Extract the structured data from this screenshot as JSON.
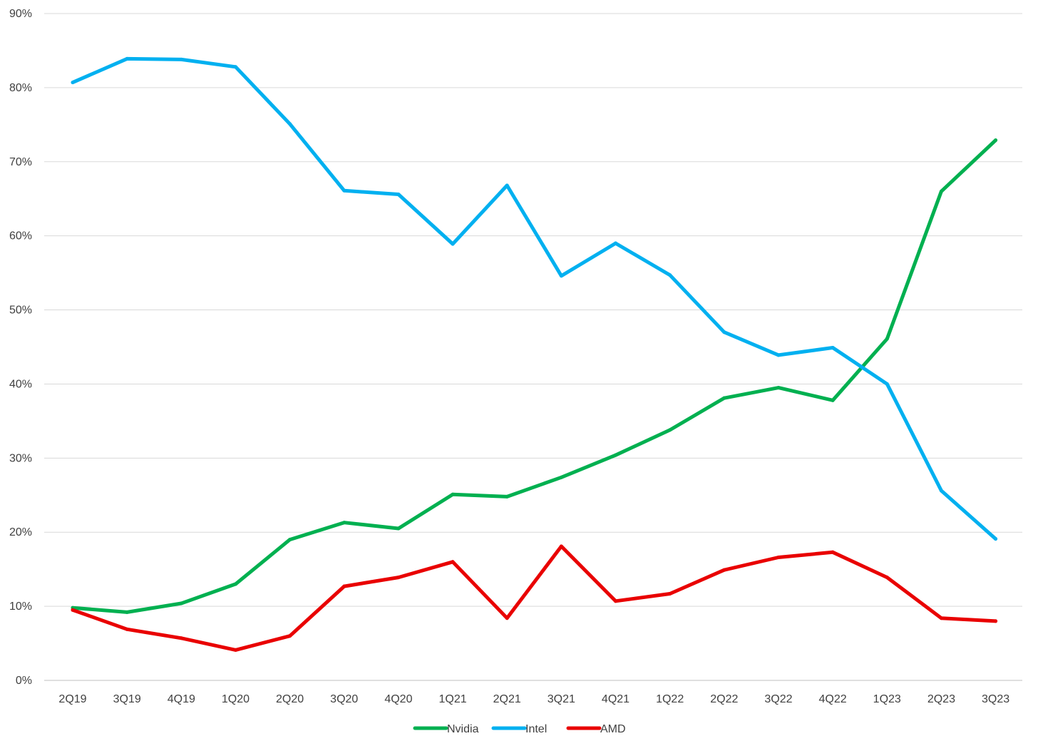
{
  "chart_data": {
    "type": "line",
    "categories": [
      "2Q19",
      "3Q19",
      "4Q19",
      "1Q20",
      "2Q20",
      "3Q20",
      "4Q20",
      "1Q21",
      "2Q21",
      "3Q21",
      "4Q21",
      "1Q22",
      "2Q22",
      "3Q22",
      "4Q22",
      "1Q23",
      "2Q23",
      "3Q23"
    ],
    "series": [
      {
        "name": "Nvidia",
        "color": "#00B050",
        "values": [
          9.8,
          9.2,
          10.4,
          13.0,
          19.0,
          21.3,
          20.5,
          25.1,
          24.8,
          27.4,
          30.4,
          33.8,
          38.1,
          39.5,
          37.8,
          46.1,
          66.0,
          72.9
        ]
      },
      {
        "name": "Intel",
        "color": "#00B0F0",
        "values": [
          80.7,
          83.9,
          83.8,
          82.8,
          75.1,
          66.1,
          65.6,
          58.9,
          66.8,
          54.6,
          59.0,
          54.7,
          47.0,
          43.9,
          44.9,
          40.0,
          25.6,
          19.1
        ]
      },
      {
        "name": "AMD",
        "color": "#E90000",
        "values": [
          9.5,
          6.9,
          5.7,
          4.1,
          6.0,
          12.7,
          13.9,
          16.0,
          8.4,
          18.1,
          10.7,
          11.7,
          14.9,
          16.6,
          17.3,
          13.9,
          8.4,
          8.0
        ]
      }
    ],
    "y_ticks": [
      "0%",
      "10%",
      "20%",
      "30%",
      "40%",
      "50%",
      "60%",
      "70%",
      "80%",
      "90%"
    ],
    "ylim": [
      0,
      90
    ],
    "grid": "horizontal",
    "legend_position": "bottom-center",
    "title": "",
    "xlabel": "",
    "ylabel": ""
  }
}
